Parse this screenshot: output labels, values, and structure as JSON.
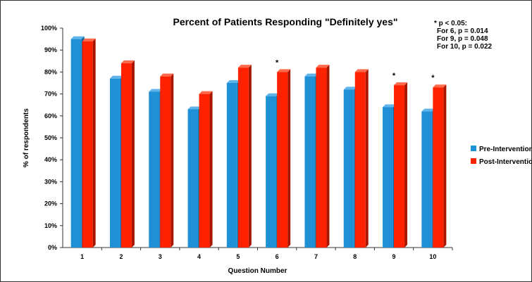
{
  "chart_data": {
    "type": "bar",
    "title": "Percent of Patients Responding \"Definitely yes\"",
    "xlabel": "Question Number",
    "ylabel": "% of respondents",
    "ylim": [
      0,
      100
    ],
    "yticks": [
      "0%",
      "10%",
      "20%",
      "30%",
      "40%",
      "50%",
      "60%",
      "70%",
      "80%",
      "90%",
      "100%"
    ],
    "categories": [
      "1",
      "2",
      "3",
      "4",
      "5",
      "6",
      "7",
      "8",
      "9",
      "10"
    ],
    "series": [
      {
        "name": "Pre-Intervention",
        "color": "#1f8fd6",
        "values": [
          95,
          77,
          71,
          63,
          75,
          69,
          78,
          72,
          64,
          62
        ]
      },
      {
        "name": "Post-Intervention",
        "color": "#ff2200",
        "values": [
          94,
          84,
          78,
          70,
          82,
          80,
          82,
          80,
          74,
          73
        ]
      }
    ],
    "significance_markers": [
      "",
      "",
      "",
      "",
      "",
      "*",
      "",
      "",
      "*",
      "*"
    ],
    "legend_position": "right",
    "grid": false,
    "annotation": [
      "* p < 0.05:",
      "For 6, p = 0.014",
      "For 9, p = 0.048",
      "For 10, p = 0.022"
    ]
  }
}
